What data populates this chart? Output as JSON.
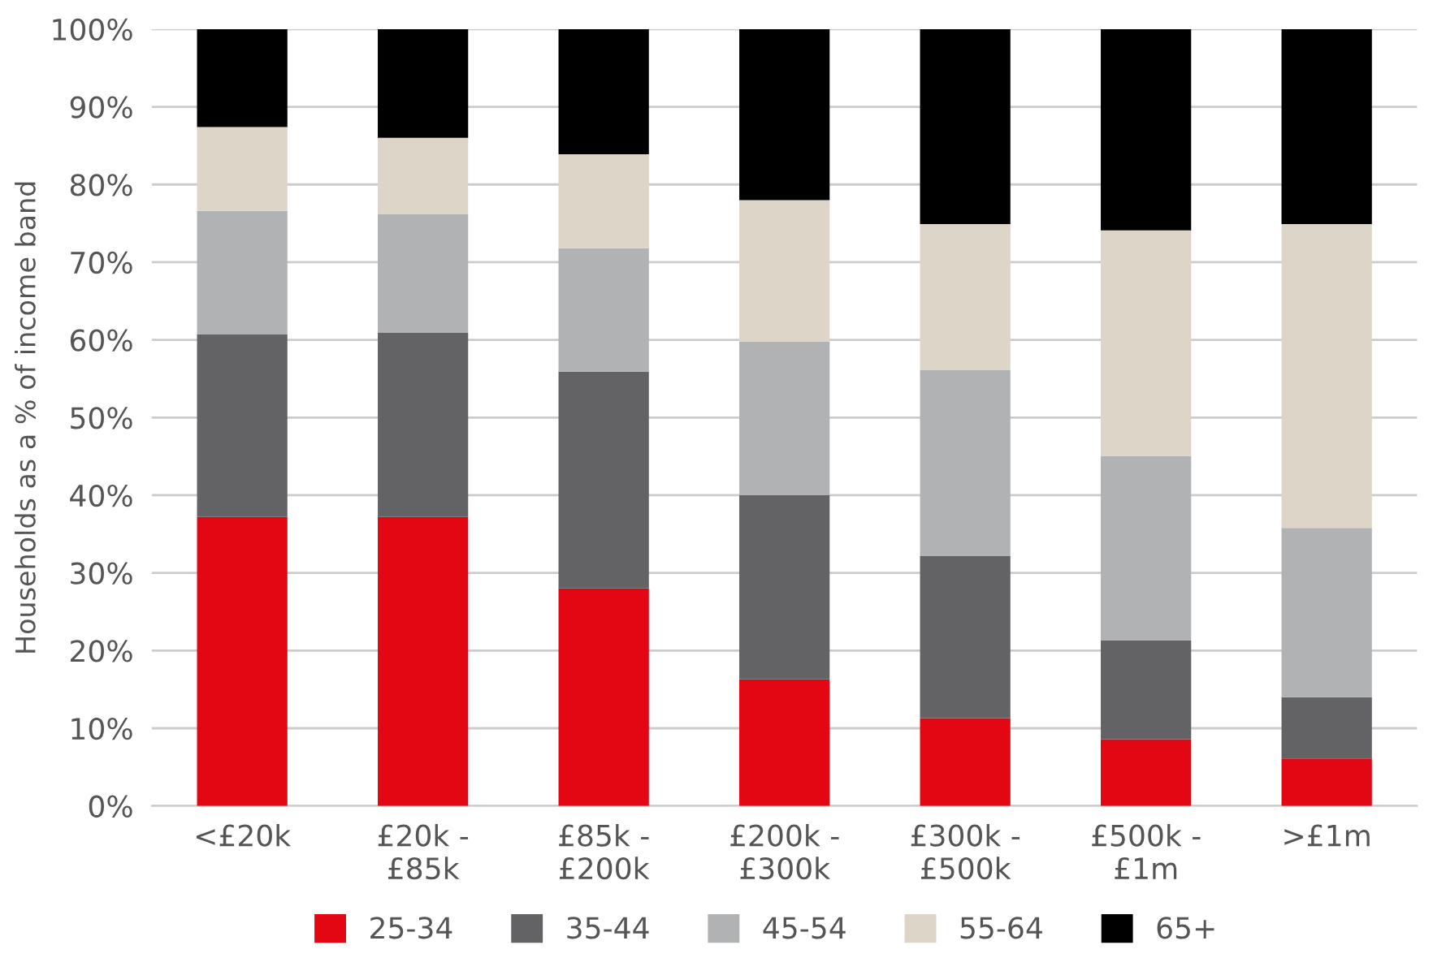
{
  "chart_data": {
    "type": "bar",
    "stacked": true,
    "ylabel": "Households as a % of income band",
    "categories": [
      "<£20k",
      "£20k -\n£85k",
      "£85k -\n£200k",
      "£200k -\n£300k",
      "£300k -\n£500k",
      "£500k -\n£1m",
      ">£1m"
    ],
    "series": [
      {
        "name": "25-34",
        "color": "#e30613",
        "values": [
          37.2,
          37.2,
          28.0,
          16.3,
          11.3,
          8.6,
          6.1
        ]
      },
      {
        "name": "35-44",
        "color": "#636366",
        "values": [
          23.5,
          23.7,
          27.9,
          23.7,
          20.9,
          12.7,
          7.9
        ]
      },
      {
        "name": "45-54",
        "color": "#b1b2b4",
        "values": [
          15.9,
          15.3,
          15.9,
          19.8,
          23.9,
          23.7,
          21.8
        ]
      },
      {
        "name": "55-64",
        "color": "#ddd5c7",
        "values": [
          10.8,
          9.8,
          12.1,
          18.2,
          18.8,
          29.1,
          39.1
        ]
      },
      {
        "name": "65+",
        "color": "#000000",
        "values": [
          12.6,
          14.0,
          16.1,
          22.0,
          25.1,
          25.9,
          25.1
        ]
      }
    ],
    "ylim": [
      0,
      100
    ],
    "yticks": [
      {
        "value": 0,
        "label": "0%"
      },
      {
        "value": 10,
        "label": "10%"
      },
      {
        "value": 20,
        "label": "20%"
      },
      {
        "value": 30,
        "label": "30%"
      },
      {
        "value": 40,
        "label": "40%"
      },
      {
        "value": 50,
        "label": "50%"
      },
      {
        "value": 60,
        "label": "60%"
      },
      {
        "value": 70,
        "label": "70%"
      },
      {
        "value": 80,
        "label": "80%"
      },
      {
        "value": 90,
        "label": "90%"
      },
      {
        "value": 100,
        "label": "100%"
      }
    ],
    "grid": "y",
    "legend": "bottom"
  }
}
